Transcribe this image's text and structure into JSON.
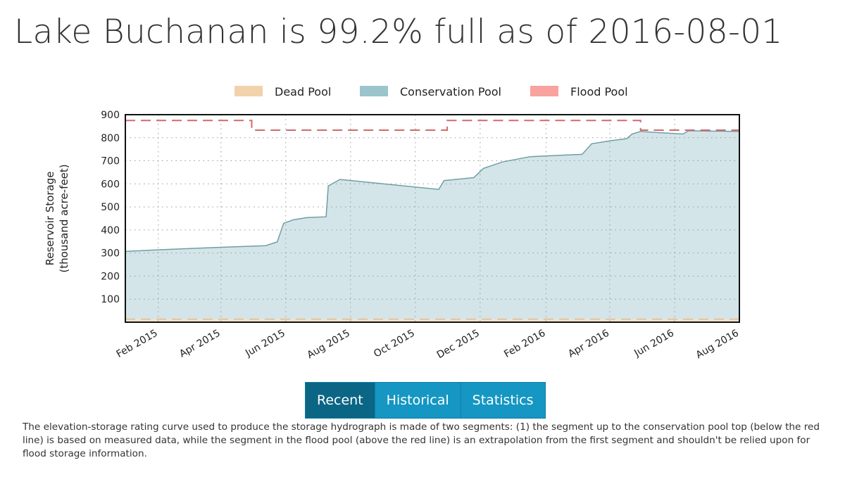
{
  "title": "Lake Buchanan is 99.2% full as of 2016-08-01",
  "tabs": [
    {
      "label": "Recent",
      "active": true
    },
    {
      "label": "Historical",
      "active": false
    },
    {
      "label": "Statistics",
      "active": false
    }
  ],
  "note": "The elevation-storage rating curve used to produce the storage hydrograph is made of two segments: (1) the segment up to the conservation pool top (below the red line) is based on measured data, while the segment in the flood pool (above the red line) is an extrapolation from the first segment and shouldn't be relied upon for flood storage information.",
  "chart_data": {
    "type": "area",
    "ylabel": "Reservoir Storage (thousand acre-feet)",
    "ylabel_lines": [
      "Reservoir Storage",
      "(thousand acre-feet)"
    ],
    "ylim": [
      0,
      900
    ],
    "yticks": [
      100,
      200,
      300,
      400,
      500,
      600,
      700,
      800,
      900
    ],
    "xlim": [
      "2015-01-01",
      "2016-08-01"
    ],
    "xticks": [
      {
        "date": "2015-02-01",
        "label": "Feb 2015"
      },
      {
        "date": "2015-04-01",
        "label": "Apr 2015"
      },
      {
        "date": "2015-06-01",
        "label": "Jun 2015"
      },
      {
        "date": "2015-08-01",
        "label": "Aug 2015"
      },
      {
        "date": "2015-10-01",
        "label": "Oct 2015"
      },
      {
        "date": "2015-12-01",
        "label": "Dec 2015"
      },
      {
        "date": "2016-02-01",
        "label": "Feb 2016"
      },
      {
        "date": "2016-04-01",
        "label": "Apr 2016"
      },
      {
        "date": "2016-06-01",
        "label": "Jun 2016"
      },
      {
        "date": "2016-08-01",
        "label": "Aug 2016"
      }
    ],
    "grid": true,
    "legend": {
      "placement": "top-center",
      "items": [
        {
          "label": "Dead Pool",
          "color": "#f1d2ab"
        },
        {
          "label": "Conservation Pool",
          "color": "#9cc4cc"
        },
        {
          "label": "Flood Pool",
          "color": "#f9a29e"
        }
      ]
    },
    "colors": {
      "fill": "#d4e5e9",
      "line": "#6f9fa3",
      "flood_line": "#d06a6a",
      "dead_line": "#e5c29a",
      "dead_fill": "#f6e2cb"
    },
    "dead_pool": 13,
    "series": [
      {
        "name": "Storage",
        "points": [
          [
            "2015-01-01",
            307
          ],
          [
            "2015-02-01",
            314
          ],
          [
            "2015-04-01",
            325
          ],
          [
            "2015-05-13",
            332
          ],
          [
            "2015-05-24",
            348
          ],
          [
            "2015-05-30",
            429
          ],
          [
            "2015-06-08",
            444
          ],
          [
            "2015-06-21",
            454
          ],
          [
            "2015-07-09",
            457
          ],
          [
            "2015-07-11",
            591
          ],
          [
            "2015-07-22",
            619
          ],
          [
            "2015-08-02",
            614
          ],
          [
            "2015-10-23",
            576
          ],
          [
            "2015-10-28",
            614
          ],
          [
            "2015-11-25",
            627
          ],
          [
            "2015-12-04",
            667
          ],
          [
            "2015-12-22",
            695
          ],
          [
            "2016-01-17",
            718
          ],
          [
            "2016-03-06",
            728
          ],
          [
            "2016-03-15",
            774
          ],
          [
            "2016-04-02",
            787
          ],
          [
            "2016-04-17",
            796
          ],
          [
            "2016-04-22",
            816
          ],
          [
            "2016-04-30",
            827
          ],
          [
            "2016-05-18",
            822
          ],
          [
            "2016-06-09",
            816
          ],
          [
            "2016-06-14",
            830
          ],
          [
            "2016-08-01",
            827
          ]
        ]
      },
      {
        "name": "Flood Pool Top",
        "points": [
          [
            "2015-01-01",
            875
          ],
          [
            "2015-04-30",
            875
          ],
          [
            "2015-04-30",
            833
          ],
          [
            "2015-10-31",
            833
          ],
          [
            "2015-10-31",
            875
          ],
          [
            "2016-04-30",
            875
          ],
          [
            "2016-04-30",
            833
          ],
          [
            "2016-08-01",
            833
          ]
        ]
      }
    ]
  }
}
